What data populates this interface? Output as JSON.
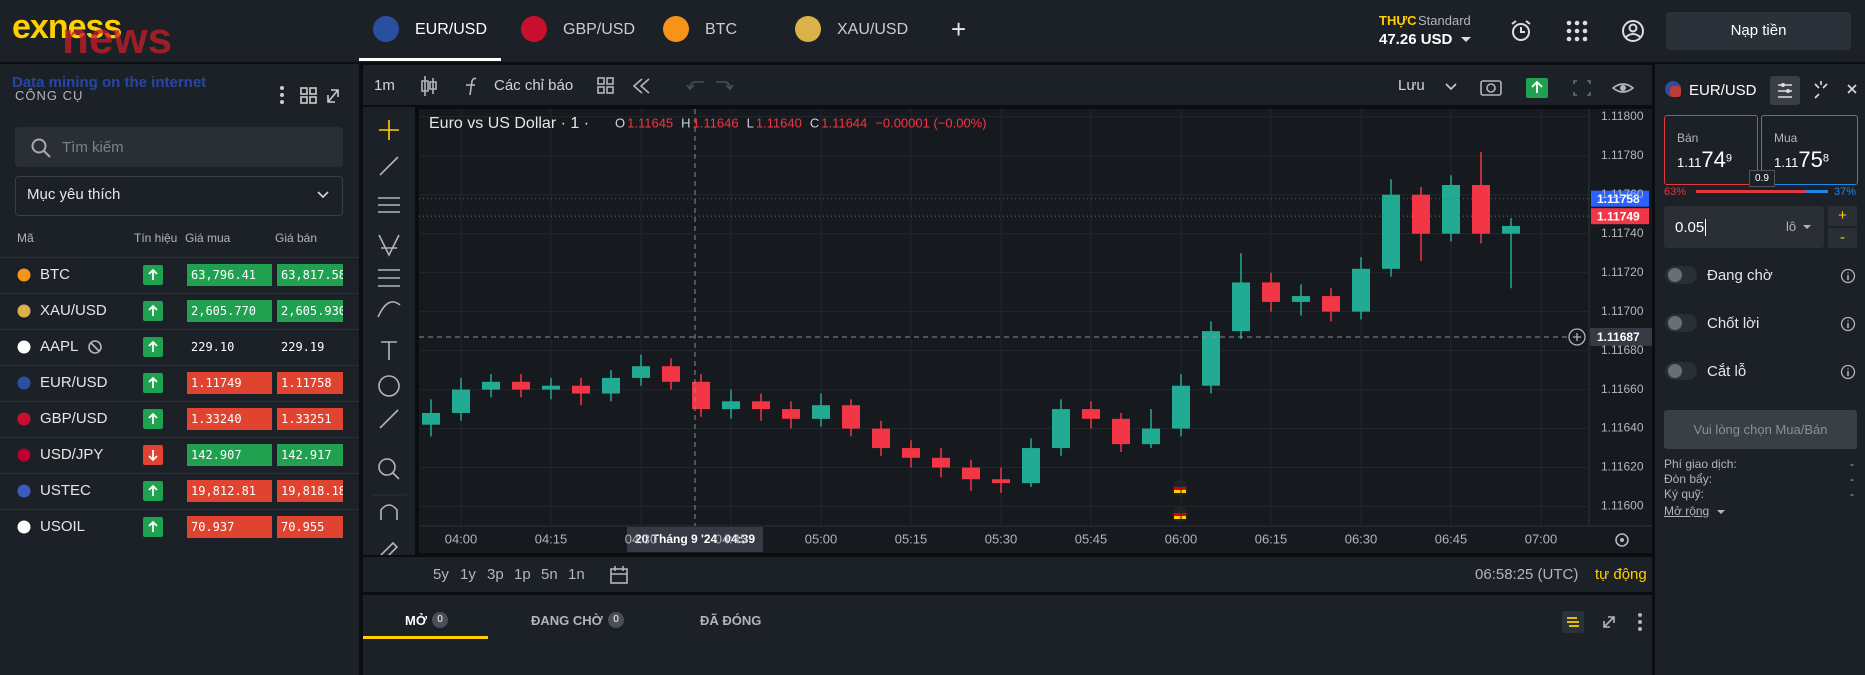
{
  "header": {
    "brand": "exness",
    "watermark": "news",
    "watermark_tagline": "Data mining on the internet",
    "tabs": [
      "EUR/USD",
      "GBP/USD",
      "BTC",
      "XAU/USD"
    ],
    "new_tab": "+",
    "account_type": "THỰC",
    "account_plan": "Standard",
    "balance": "47.26 USD",
    "deposit": "Nạp tiền"
  },
  "sidebar": {
    "title": "CÔNG CỤ",
    "search_placeholder": "Tìm kiếm",
    "filter": "Mục yêu thích",
    "columns": [
      "Mã",
      "Tín hiệu",
      "Giá mua",
      "Giá bán"
    ],
    "rows": [
      {
        "symbol": "BTC",
        "signal": "up",
        "bid": "63,796.41",
        "ask": "63,817.58",
        "quote_color": "#1fa14f",
        "icon_color": "#f7931a"
      },
      {
        "symbol": "XAU/USD",
        "signal": "up",
        "bid": "2,605.770",
        "ask": "2,605.930",
        "quote_color": "#1fa14f",
        "icon_color": "#d9b24a"
      },
      {
        "symbol": "AAPL",
        "signal": "up",
        "bid": "229.10",
        "ask": "229.19",
        "closed": true,
        "icon_color": "#ffffff"
      },
      {
        "symbol": "EUR/USD",
        "signal": "up",
        "bid": "1.11749",
        "ask": "1.11758",
        "quote_color": "#e0432f",
        "icon_color": "#2a4fa0"
      },
      {
        "symbol": "GBP/USD",
        "signal": "up",
        "bid": "1.33240",
        "ask": "1.33251",
        "quote_color": "#e0432f",
        "icon_color": "#c8102e"
      },
      {
        "symbol": "USD/JPY",
        "signal": "down",
        "bid": "142.907",
        "ask": "142.917",
        "quote_color": "#1fa14f",
        "icon_color": "#bc002d"
      },
      {
        "symbol": "USTEC",
        "signal": "up",
        "bid": "19,812.81",
        "ask": "19,818.18",
        "quote_color": "#e0432f",
        "icon_color": "#3c5bbf"
      },
      {
        "symbol": "USOIL",
        "signal": "up",
        "bid": "70.937",
        "ask": "70.955",
        "quote_color": "#e0432f",
        "icon_color": "#ffffff"
      }
    ]
  },
  "toolbar": {
    "interval": "1m",
    "indicators": "Các chỉ báo",
    "save": "Lưu"
  },
  "chart_data": {
    "type": "candlestick",
    "title": "Euro vs US Dollar · 1 ·",
    "ohlc": [
      {
        "key": "O",
        "value": "1.11645"
      },
      {
        "key": "H",
        "value": "1.11646"
      },
      {
        "key": "L",
        "value": "1.11640"
      },
      {
        "key": "C",
        "value": "1.11644"
      }
    ],
    "change": "−0.00001 (−0.00%)",
    "x": [
      235,
      240,
      245,
      250,
      255,
      260,
      265,
      270,
      275,
      280,
      285,
      290,
      295,
      300,
      305,
      310,
      315,
      320,
      325,
      330,
      335,
      340,
      345,
      350,
      355,
      360,
      365,
      370,
      375,
      380,
      385,
      390,
      395,
      400,
      405,
      410,
      415
    ],
    "open": [
      1.11642,
      1.11648,
      1.1166,
      1.11664,
      1.1166,
      1.11662,
      1.11658,
      1.11666,
      1.11672,
      1.11664,
      1.1165,
      1.11654,
      1.1165,
      1.11645,
      1.11652,
      1.1164,
      1.1163,
      1.11625,
      1.1162,
      1.11614,
      1.11612,
      1.1163,
      1.1165,
      1.11645,
      1.11632,
      1.1164,
      1.11662,
      1.1169,
      1.11715,
      1.11705,
      1.11708,
      1.117,
      1.11722,
      1.1176,
      1.1174,
      1.11765,
      1.1174
    ],
    "high": [
      1.11655,
      1.11666,
      1.11668,
      1.11668,
      1.11666,
      1.11666,
      1.1167,
      1.11678,
      1.11676,
      1.11668,
      1.1166,
      1.11658,
      1.11654,
      1.11658,
      1.11655,
      1.11644,
      1.11634,
      1.1163,
      1.11624,
      1.1162,
      1.11635,
      1.11655,
      1.11654,
      1.11648,
      1.1165,
      1.11668,
      1.11695,
      1.1173,
      1.1172,
      1.11714,
      1.11712,
      1.11728,
      1.11768,
      1.11764,
      1.1177,
      1.11782,
      1.11748
    ],
    "low": [
      1.11636,
      1.11644,
      1.11656,
      1.11656,
      1.11655,
      1.11652,
      1.11654,
      1.11662,
      1.1166,
      1.11646,
      1.11645,
      1.11644,
      1.1164,
      1.11641,
      1.11636,
      1.11626,
      1.1162,
      1.11615,
      1.11608,
      1.11607,
      1.1161,
      1.11626,
      1.1164,
      1.11628,
      1.1163,
      1.11636,
      1.11658,
      1.11686,
      1.117,
      1.11698,
      1.11695,
      1.11696,
      1.11718,
      1.11726,
      1.11736,
      1.11735,
      1.11712
    ],
    "close": [
      1.11648,
      1.1166,
      1.11664,
      1.1166,
      1.11662,
      1.11658,
      1.11666,
      1.11672,
      1.11664,
      1.1165,
      1.11654,
      1.1165,
      1.11645,
      1.11652,
      1.1164,
      1.1163,
      1.11625,
      1.1162,
      1.11614,
      1.11612,
      1.1163,
      1.1165,
      1.11645,
      1.11632,
      1.1164,
      1.11662,
      1.1169,
      1.11715,
      1.11705,
      1.11708,
      1.117,
      1.11722,
      1.1176,
      1.1174,
      1.11765,
      1.1174,
      1.11744
    ],
    "up_color": "#22ab94",
    "down_color": "#f23645",
    "xlim": [
      233,
      428
    ],
    "xticks": [
      {
        "value": 240,
        "label": "04:00"
      },
      {
        "value": 255,
        "label": "04:15"
      },
      {
        "value": 270,
        "label": "04:30"
      },
      {
        "value": 285,
        "label": "04:45"
      },
      {
        "value": 300,
        "label": "05:00"
      },
      {
        "value": 315,
        "label": "05:15"
      },
      {
        "value": 330,
        "label": "05:30"
      },
      {
        "value": 345,
        "label": "05:45"
      },
      {
        "value": 360,
        "label": "06:00"
      },
      {
        "value": 375,
        "label": "06:15"
      },
      {
        "value": 390,
        "label": "06:30"
      },
      {
        "value": 405,
        "label": "06:45"
      },
      {
        "value": 420,
        "label": "07:00"
      }
    ],
    "ylim": [
      1.1159,
      1.11804
    ],
    "yticks": [
      {
        "value": 1.116,
        "label": "1.11600"
      },
      {
        "value": 1.1162,
        "label": "1.11620"
      },
      {
        "value": 1.1164,
        "label": "1.11640"
      },
      {
        "value": 1.1166,
        "label": "1.11660"
      },
      {
        "value": 1.1168,
        "label": "1.11680"
      },
      {
        "value": 1.117,
        "label": "1.11700"
      },
      {
        "value": 1.1172,
        "label": "1.11720"
      },
      {
        "value": 1.1174,
        "label": "1.11740"
      },
      {
        "value": 1.1176,
        "label": "1.11760"
      },
      {
        "value": 1.1178,
        "label": "1.11780"
      },
      {
        "value": 1.118,
        "label": "1.11800"
      }
    ],
    "grid": true,
    "price_lines": [
      {
        "value": 1.11758,
        "color": "#2962ff"
      },
      {
        "value": 1.11749,
        "color": "#f23645"
      }
    ],
    "crosshair": {
      "x": {
        "value": 279,
        "label": "04:39"
      },
      "date": "20 Tháng 9 '24",
      "y": 1.11687
    }
  },
  "range": {
    "buttons": [
      "5y",
      "1y",
      "3p",
      "1p",
      "5n",
      "1n"
    ],
    "clock": "06:58:25 (UTC)",
    "auto": "tự động"
  },
  "bottom_tabs": [
    {
      "label": "MỞ",
      "count": "0"
    },
    {
      "label": "ĐANG CHỜ",
      "count": "0"
    },
    {
      "label": "ĐÃ ĐÓNG"
    }
  ],
  "order": {
    "symbol": "EUR/USD",
    "sell": {
      "label": "Bán",
      "price_head": "1.11",
      "price_big": "74",
      "price_sup": "9"
    },
    "buy": {
      "label": "Mua",
      "price_head": "1.11",
      "price_big": "75",
      "price_sup": "8"
    },
    "spread": "0.9",
    "sell_share": "63%",
    "buy_share": "37%",
    "volume": "0.05",
    "unit": "lô",
    "plus": "+",
    "minus": "-",
    "toggles": [
      "Đang chờ",
      "Chốt lời",
      "Cắt lỗ"
    ],
    "submit": "Vui lòng chọn Mua/Bán",
    "info": [
      {
        "label": "Phí giao dịch:",
        "value": "-"
      },
      {
        "label": "Đòn bẩy:",
        "value": "-"
      },
      {
        "label": "Ký quỹ:",
        "value": "-"
      }
    ],
    "more": "Mở rộng"
  }
}
